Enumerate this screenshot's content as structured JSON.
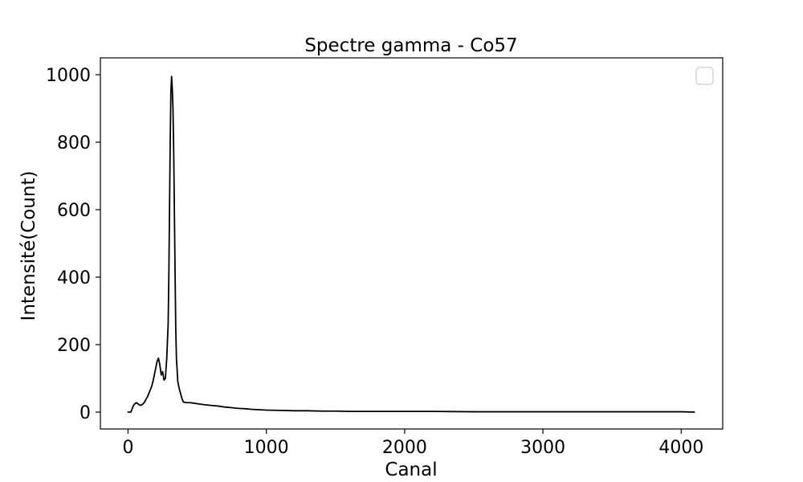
{
  "chart_data": {
    "type": "line",
    "title": "Spectre gamma  - Co57",
    "xlabel": "Canal",
    "ylabel": "Intensité(Count)",
    "xlim": [
      -200,
      4300
    ],
    "ylim": [
      -50,
      1050
    ],
    "xticks": [
      0,
      1000,
      2000,
      3000,
      4000
    ],
    "yticks": [
      0,
      200,
      400,
      600,
      800,
      1000
    ],
    "grid": false,
    "legend": "top-right",
    "line_color": "#000000",
    "series": [
      {
        "x": [
          0,
          20,
          30,
          40,
          50,
          60,
          70,
          80,
          90,
          100,
          110,
          120,
          130,
          140,
          150,
          160,
          170,
          180,
          190,
          200,
          210,
          220,
          230,
          240,
          250,
          260,
          270,
          280,
          290,
          295,
          300,
          305,
          310,
          315,
          320,
          325,
          330,
          335,
          340,
          345,
          350,
          360,
          370,
          380,
          390,
          400,
          420,
          450,
          500,
          550,
          600,
          650,
          700,
          750,
          800,
          850,
          900,
          1000,
          1100,
          1200,
          1300,
          1400,
          1500,
          1600,
          1800,
          2000,
          2200,
          2500,
          2800,
          3000,
          3200,
          3400,
          3600,
          3800,
          4000,
          4095
        ],
        "y": [
          0,
          0,
          10,
          20,
          25,
          28,
          25,
          22,
          20,
          22,
          25,
          30,
          38,
          45,
          55,
          65,
          75,
          90,
          110,
          130,
          150,
          160,
          140,
          110,
          120,
          95,
          100,
          160,
          260,
          400,
          600,
          800,
          950,
          995,
          960,
          900,
          780,
          600,
          420,
          250,
          160,
          90,
          70,
          55,
          40,
          30,
          28,
          28,
          25,
          22,
          20,
          18,
          15,
          13,
          11,
          10,
          8,
          6,
          5,
          4,
          4,
          3,
          3,
          2,
          2,
          2,
          2,
          1,
          1,
          1,
          1,
          1,
          1,
          1,
          1,
          0
        ]
      }
    ]
  }
}
